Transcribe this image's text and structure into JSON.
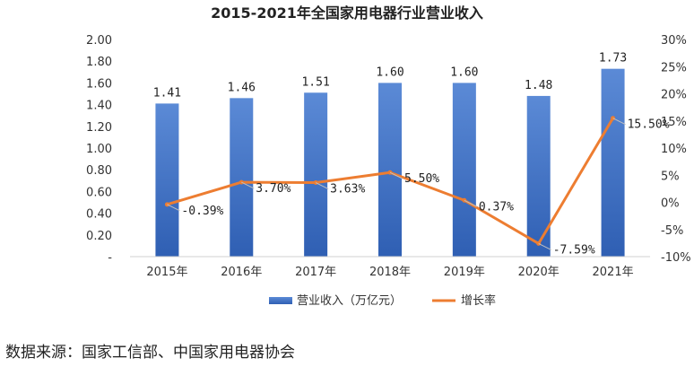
{
  "chart_data": {
    "type": "bar+line",
    "title": "2015-2021年全国家用电器行业营业收入",
    "categories": [
      "2015年",
      "2016年",
      "2017年",
      "2018年",
      "2019年",
      "2020年",
      "2021年"
    ],
    "series": [
      {
        "name": "营业收入（万亿元）",
        "type": "bar",
        "axis": "left",
        "values": [
          1.41,
          1.46,
          1.51,
          1.6,
          1.6,
          1.48,
          1.73
        ],
        "labels": [
          "1.41",
          "1.46",
          "1.51",
          "1.60",
          "1.60",
          "1.48",
          "1.73"
        ],
        "color": "#4472c4"
      },
      {
        "name": "增长率",
        "type": "line",
        "axis": "right",
        "values": [
          -0.39,
          3.7,
          3.63,
          5.5,
          0.37,
          -7.59,
          15.5
        ],
        "labels": [
          "-0.39%",
          "3.70%",
          "3.63%",
          "5.50%",
          "0.37%",
          "-7.59%",
          "15.50%"
        ],
        "color": "#ed7d31"
      }
    ],
    "y_left": {
      "min": 0,
      "max": 2.0,
      "step": 0.2,
      "ticks": [
        "-",
        "0.20",
        "0.40",
        "0.60",
        "0.80",
        "1.00",
        "1.20",
        "1.40",
        "1.60",
        "1.80",
        "2.00"
      ]
    },
    "y_right": {
      "min": -10,
      "max": 30,
      "step": 5,
      "ticks": [
        "-10%",
        "-5%",
        "0%",
        "5%",
        "10%",
        "15%",
        "20%",
        "25%",
        "30%"
      ]
    },
    "legend_position": "bottom",
    "grid": false
  },
  "source": "数据来源：国家工信部、中国家用电器协会"
}
